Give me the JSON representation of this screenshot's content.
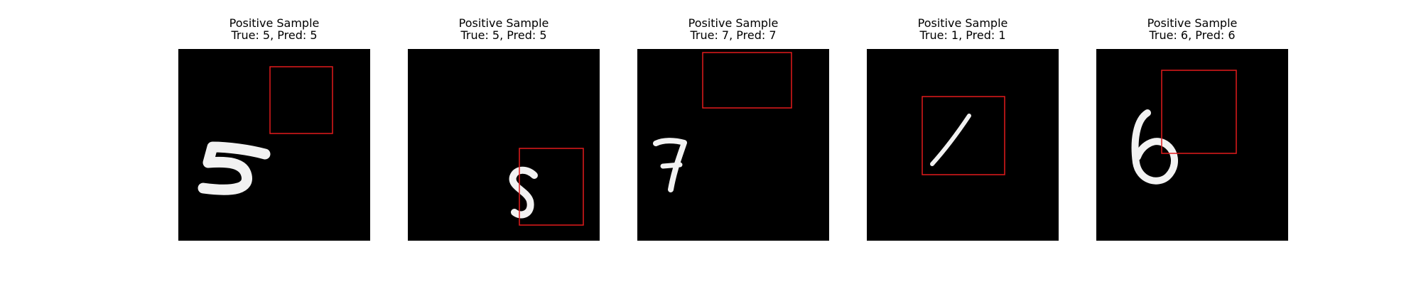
{
  "colors": {
    "background": "#ffffff",
    "image_background": "#000000",
    "digit_stroke": "#f2f2f2",
    "box_stroke": "#e31a1c"
  },
  "panels": [
    {
      "title_line1": "Positive Sample",
      "title_line2": "True: 5, Pred: 5",
      "digit": "5"
    },
    {
      "title_line1": "Positive Sample",
      "title_line2": "True: 5, Pred: 5",
      "digit": "5"
    },
    {
      "title_line1": "Positive Sample",
      "title_line2": "True: 7, Pred: 7",
      "digit": "7"
    },
    {
      "title_line1": "Positive Sample",
      "title_line2": "True: 1, Pred: 1",
      "digit": "1"
    },
    {
      "title_line1": "Positive Sample",
      "title_line2": "True: 6, Pred: 6",
      "digit": "6"
    }
  ]
}
